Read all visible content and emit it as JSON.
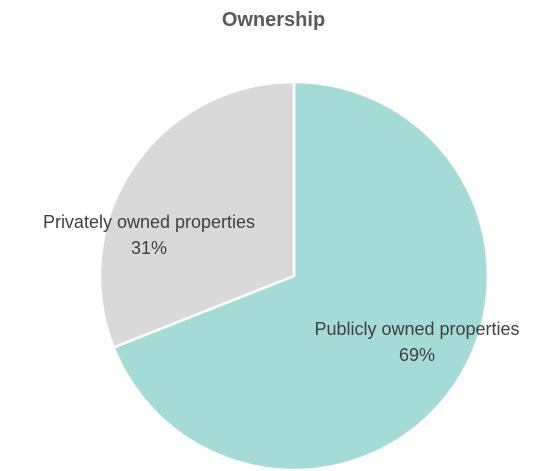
{
  "chart_data": {
    "type": "pie",
    "title": "Ownership",
    "slices": [
      {
        "label": "Publicly owned properties",
        "value": 69,
        "value_label": "69%",
        "color": "#a5dbd6"
      },
      {
        "label": "Privately owned properties",
        "value": 31,
        "value_label": "31%",
        "color": "#d9d9d9"
      }
    ],
    "start": "12 o'clock",
    "direction": "clockwise",
    "slice_border_color": "#ffffff",
    "legend": "none",
    "data_labels": "on slices, category name and percentage"
  }
}
